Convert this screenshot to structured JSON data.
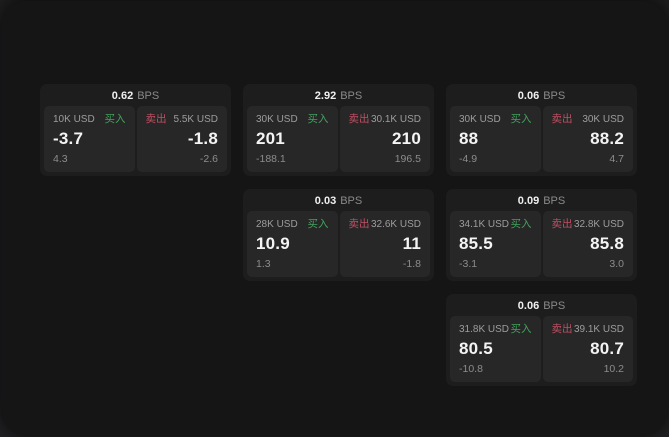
{
  "labels": {
    "buy": "买入",
    "sell": "卖出",
    "bps_unit": "BPS"
  },
  "colors": {
    "buy_green": "#43a35c",
    "sell_red": "#c04f62",
    "window_bg": "#151516",
    "card_bg": "#1d1d1e",
    "panel_bg": "#272728"
  },
  "cards": [
    {
      "bps": "0.62",
      "buy": {
        "amount": "10K USD",
        "value": "-3.7",
        "sub": "4.3"
      },
      "sell": {
        "amount": "5.5K USD",
        "value": "-1.8",
        "sub": "-2.6"
      }
    },
    {
      "bps": "2.92",
      "buy": {
        "amount": "30K USD",
        "value": "201",
        "sub": "-188.1"
      },
      "sell": {
        "amount": "30.1K USD",
        "value": "210",
        "sub": "196.5"
      }
    },
    {
      "bps": "0.06",
      "buy": {
        "amount": "30K USD",
        "value": "88",
        "sub": "-4.9"
      },
      "sell": {
        "amount": "30K USD",
        "value": "88.2",
        "sub": "4.7"
      }
    },
    {
      "bps": "0.03",
      "buy": {
        "amount": "28K USD",
        "value": "10.9",
        "sub": "1.3"
      },
      "sell": {
        "amount": "32.6K USD",
        "value": "11",
        "sub": "-1.8"
      }
    },
    {
      "bps": "0.09",
      "buy": {
        "amount": "34.1K USD",
        "value": "85.5",
        "sub": "-3.1"
      },
      "sell": {
        "amount": "32.8K USD",
        "value": "85.8",
        "sub": "3.0"
      }
    },
    {
      "bps": "0.06",
      "buy": {
        "amount": "31.8K USD",
        "value": "80.5",
        "sub": "-10.8"
      },
      "sell": {
        "amount": "39.1K USD",
        "value": "80.7",
        "sub": "10.2"
      }
    }
  ]
}
